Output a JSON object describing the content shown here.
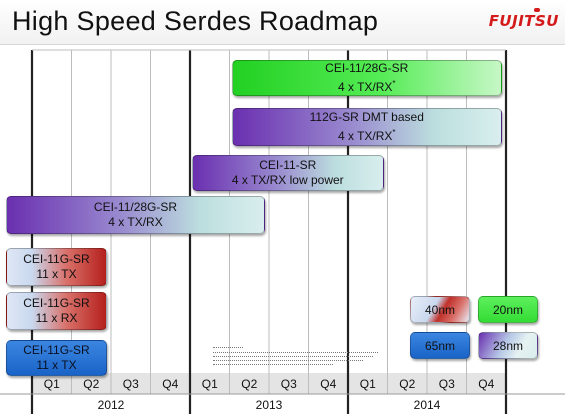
{
  "header": {
    "title": "High Speed Serdes Roadmap",
    "logo": "FUJITSU"
  },
  "chart_data": {
    "type": "gantt",
    "years": [
      "2012",
      "2013",
      "2014"
    ],
    "quarters": [
      "Q1",
      "Q2",
      "Q3",
      "Q4",
      "Q1",
      "Q2",
      "Q3",
      "Q4",
      "Q1",
      "Q2",
      "Q3",
      "Q4"
    ],
    "bars": [
      {
        "line1": "CEI-11/28G-SR",
        "line2": "4 x TX/RX",
        "mark": "*",
        "start_quarter": 6,
        "end_quarter": 12,
        "style": "green"
      },
      {
        "line1": "112G-SR DMT based",
        "line2": "4 x TX/RX",
        "mark": "*",
        "start_quarter": 6,
        "end_quarter": 12,
        "style": "purple"
      },
      {
        "line1": "CEI-11-SR",
        "line2": "4 x TX/RX low power",
        "mark": "",
        "start_quarter": 5,
        "end_quarter": 9,
        "style": "purple"
      },
      {
        "line1": "CEI-11/28G-SR",
        "line2": "4 x TX/RX",
        "mark": "",
        "start_quarter": 1,
        "end_quarter": 6,
        "style": "purple"
      },
      {
        "line1": "CEI-11G-SR",
        "line2": "11 x TX",
        "mark": "",
        "start_quarter": 1,
        "end_quarter": 2,
        "style": "red"
      },
      {
        "line1": "CEI-11G-SR",
        "line2": "11 x RX",
        "mark": "",
        "start_quarter": 1,
        "end_quarter": 2,
        "style": "red"
      },
      {
        "line1": "CEI-11G-SR",
        "line2": "11 x TX",
        "mark": "",
        "start_quarter": 1,
        "end_quarter": 2,
        "style": "blue"
      }
    ],
    "legend": [
      {
        "label": "40nm",
        "style": "red"
      },
      {
        "label": "20nm",
        "style": "green"
      },
      {
        "label": "65nm",
        "style": "blue"
      },
      {
        "label": "28nm",
        "style": "purple"
      }
    ],
    "styles": {
      "green": "#3fe03f",
      "purple": "#7a3fb8",
      "red": "#c8322b",
      "blue": "#1f6fd1"
    }
  }
}
